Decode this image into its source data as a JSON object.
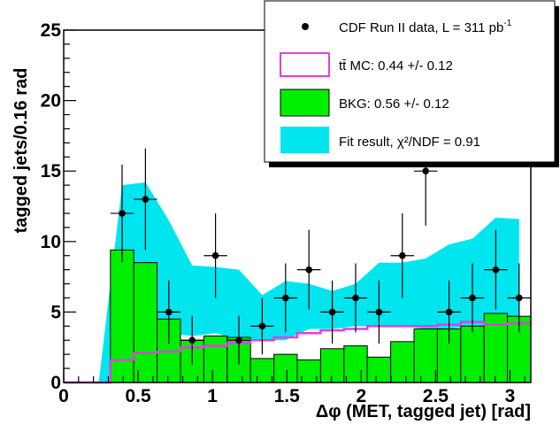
{
  "chart_data": {
    "type": "bar",
    "xlabel": "Δφ (MET, tagged jet) [rad]",
    "ylabel": "tagged jets/0.16 rad",
    "xlim": [
      0,
      3.14
    ],
    "ylim": [
      0,
      25
    ],
    "x_ticks": [
      "0",
      "0.5",
      "1",
      "1.5",
      "2",
      "2.5",
      "3"
    ],
    "x_tick_values": [
      0,
      0.5,
      1,
      1.5,
      2,
      2.5,
      3
    ],
    "y_ticks": [
      "0",
      "5",
      "10",
      "15",
      "20",
      "25"
    ],
    "y_tick_values": [
      0,
      5,
      10,
      15,
      20,
      25
    ],
    "bin_edges": [
      0,
      0.157,
      0.314,
      0.471,
      0.628,
      0.785,
      0.942,
      1.099,
      1.256,
      1.413,
      1.57,
      1.727,
      1.884,
      2.041,
      2.198,
      2.355,
      2.512,
      2.669,
      2.826,
      2.983,
      3.14
    ],
    "series": [
      {
        "name": "CDF Run II data, L = 311 pb",
        "name_superscript": "-1",
        "kind": "points",
        "color": "#000000",
        "values": [
          0,
          0,
          12,
          13,
          5,
          3,
          9,
          3,
          4,
          6,
          8,
          5,
          6,
          5,
          9,
          15,
          5,
          6,
          8,
          6
        ]
      },
      {
        "name": "tt̄ MC: 0.44 +/- 0.12",
        "kind": "step",
        "color": "#e040e0",
        "values": [
          0,
          0,
          1.6,
          2.1,
          2.2,
          2.5,
          2.6,
          2.8,
          3.0,
          3.2,
          3.5,
          3.7,
          3.8,
          4.0,
          4.0,
          4.0,
          4.1,
          4.3,
          4.1,
          4.2
        ]
      },
      {
        "name": "BKG: 0.56 +/- 0.12",
        "kind": "filled",
        "color": "#00ee00",
        "values": [
          0,
          0,
          9.4,
          8.5,
          4.5,
          3.0,
          3.3,
          3.2,
          1.7,
          2.0,
          1.6,
          2.4,
          2.6,
          1.8,
          2.9,
          3.8,
          3.8,
          4.0,
          4.9,
          4.7
        ]
      },
      {
        "name": "Fit result, χ²/NDF = 0.91",
        "kind": "band",
        "color": "#00e5ee",
        "low": [
          0,
          0,
          0,
          3.5,
          3.5,
          3.3,
          3.5,
          3.0,
          3.0,
          3.0,
          3.8,
          3.8,
          4.0,
          4.0,
          4.0,
          3.8,
          3.8,
          4.0,
          4.0,
          4.2
        ],
        "high": [
          0,
          0,
          14.0,
          14.2,
          11.5,
          8.3,
          8.2,
          8.0,
          6.2,
          7.2,
          7.0,
          6.5,
          7.0,
          8.5,
          8.5,
          8.8,
          9.8,
          10.2,
          11.7,
          11.6
        ]
      }
    ],
    "legend_position": "top-right",
    "legend_entries": [
      {
        "label": "CDF Run II data, L = 311 pb",
        "superscript": "-1",
        "style": "point"
      },
      {
        "label": "tt̄ MC: 0.44 +/- 0.12",
        "style": "line"
      },
      {
        "label": "BKG: 0.56 +/- 0.12",
        "style": "box"
      },
      {
        "label": "Fit result, χ²/NDF = 0.91",
        "style": "box"
      }
    ]
  }
}
